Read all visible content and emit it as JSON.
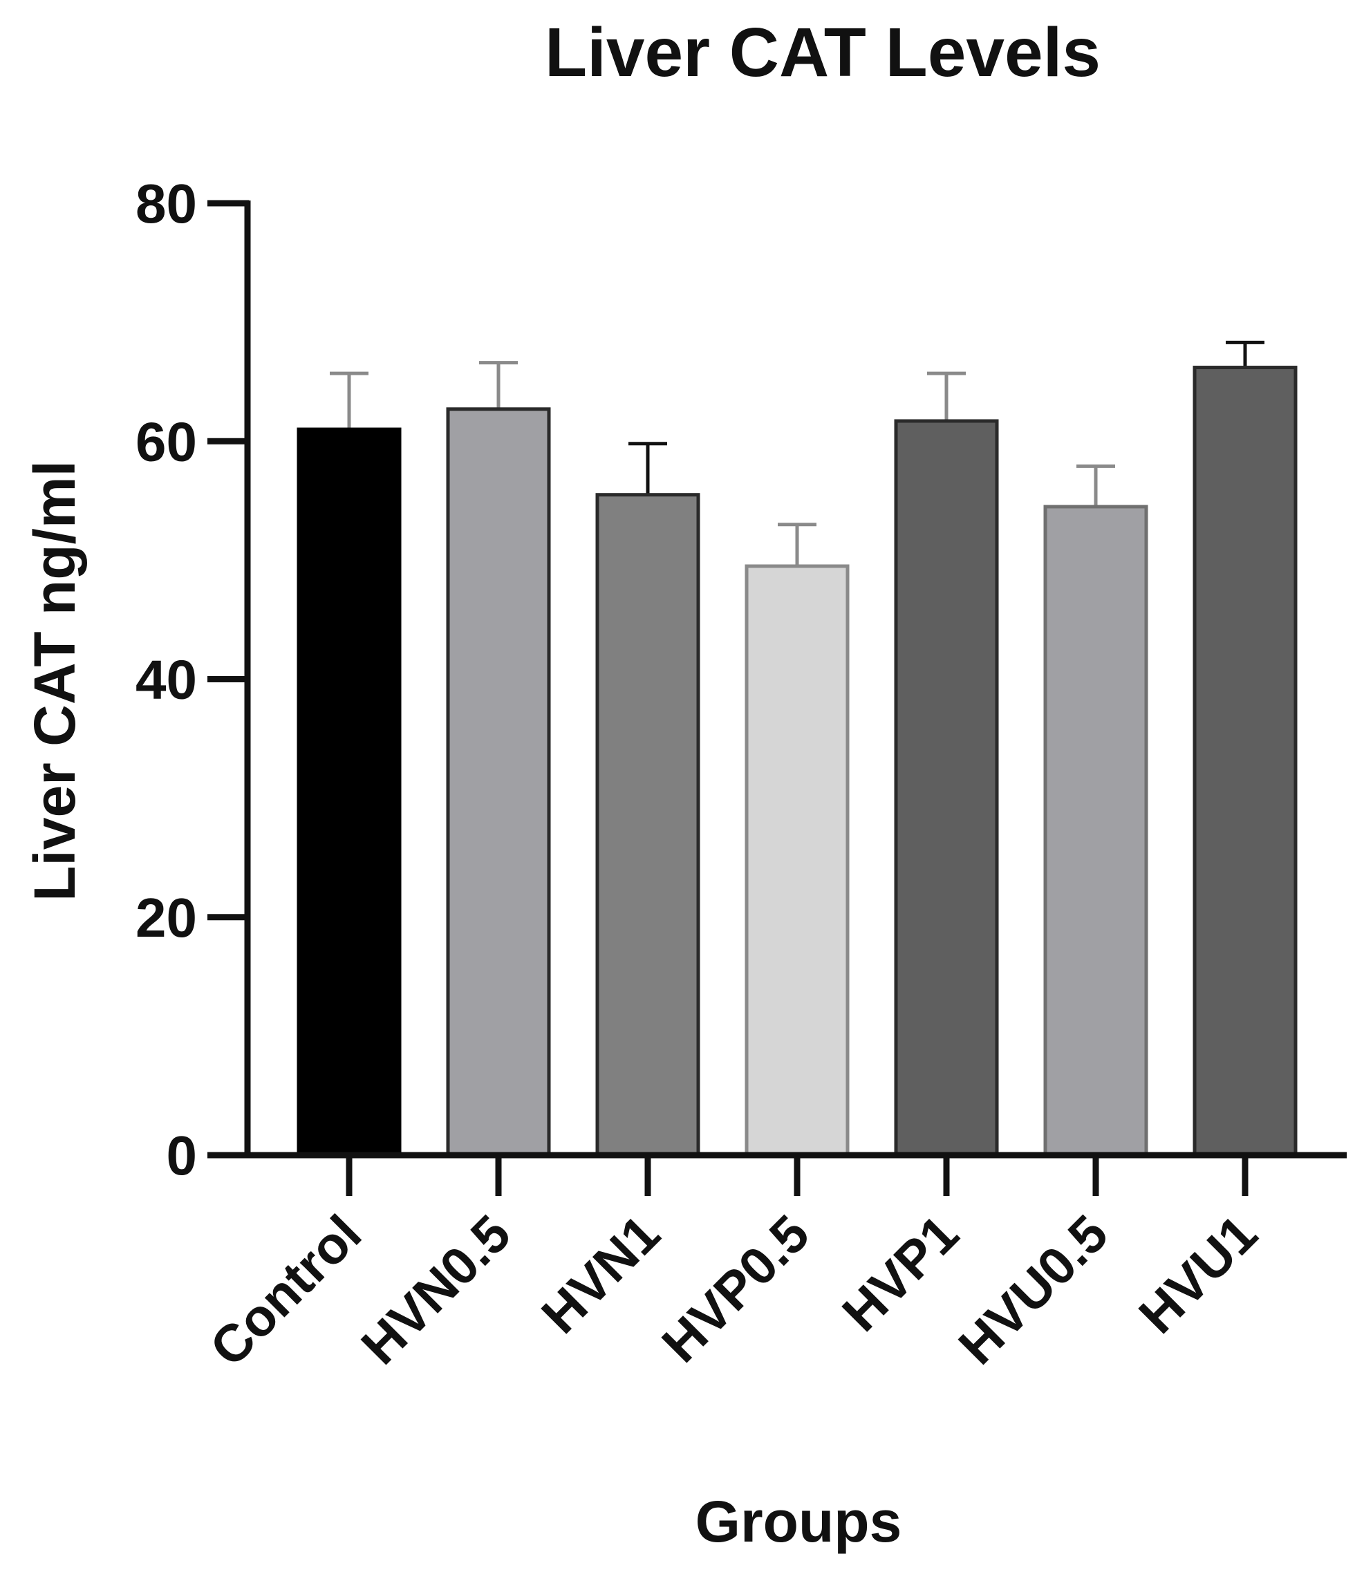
{
  "chart_data": {
    "type": "bar",
    "title": "Liver CAT Levels",
    "xlabel": "Groups",
    "ylabel": "Liver CAT ng/ml",
    "categories": [
      "Control",
      "HVN0.5",
      "HVN1",
      "HVP0.5",
      "HVP1",
      "HVU0.5",
      "HVU1"
    ],
    "values": [
      61,
      62.7,
      55.5,
      49.5,
      61.7,
      54.5,
      66.2
    ],
    "errors": [
      4.7,
      3.9,
      4.3,
      3.5,
      4.0,
      3.4,
      2.1
    ],
    "colors": [
      "#000000",
      "#a0a0a4",
      "#808080",
      "#d6d6d6",
      "#5f5f5f",
      "#a0a0a4",
      "#5f5f5f"
    ],
    "ylim": [
      0,
      80
    ],
    "yticks": [
      "0",
      "20",
      "40",
      "60",
      "80"
    ],
    "grid": false,
    "legend": "none"
  }
}
